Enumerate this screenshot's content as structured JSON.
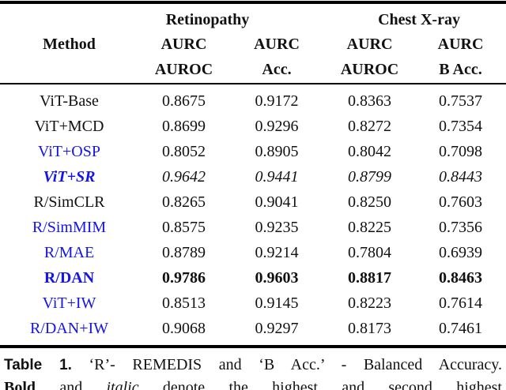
{
  "colors": {
    "accent_blue": "#1414ee",
    "text": "#111111",
    "rule_black": "#000000"
  },
  "table": {
    "group_headers": [
      {
        "label": "Retinopathy"
      },
      {
        "label": "Chest X-ray"
      }
    ],
    "col1_header": "Method",
    "metric_line1": [
      "AURC",
      "AURC",
      "AURC",
      "AURC"
    ],
    "metric_line2": [
      "AUROC",
      "Acc.",
      "AUROC",
      "B Acc."
    ],
    "rows": [
      {
        "method": "ViT-Base",
        "method_color": "black",
        "method_style": "normal",
        "value_style": "normal",
        "values": [
          "0.8675",
          "0.9172",
          "0.8363",
          "0.7537"
        ]
      },
      {
        "method": "ViT+MCD",
        "method_color": "black",
        "method_style": "normal",
        "value_style": "normal",
        "values": [
          "0.8699",
          "0.9296",
          "0.8272",
          "0.7354"
        ]
      },
      {
        "method": "ViT+OSP",
        "method_color": "blue",
        "method_style": "normal",
        "value_style": "normal",
        "values": [
          "0.8052",
          "0.8905",
          "0.8042",
          "0.7098"
        ]
      },
      {
        "method": "ViT+SR",
        "method_color": "blue",
        "method_style": "bold-italic",
        "value_style": "italic",
        "values": [
          "0.9642",
          "0.9441",
          "0.8799",
          "0.8443"
        ]
      },
      {
        "method": "R/SimCLR",
        "method_color": "black",
        "method_style": "normal",
        "value_style": "normal",
        "values": [
          "0.8265",
          "0.9041",
          "0.8250",
          "0.7603"
        ]
      },
      {
        "method": "R/SimMIM",
        "method_color": "blue",
        "method_style": "normal",
        "value_style": "normal",
        "values": [
          "0.8575",
          "0.9235",
          "0.8225",
          "0.7356"
        ]
      },
      {
        "method": "R/MAE",
        "method_color": "blue",
        "method_style": "normal",
        "value_style": "normal",
        "values": [
          "0.8789",
          "0.9214",
          "0.7804",
          "0.6939"
        ]
      },
      {
        "method": "R/DAN",
        "method_color": "blue",
        "method_style": "bold",
        "value_style": "bold",
        "values": [
          "0.9786",
          "0.9603",
          "0.8817",
          "0.8463"
        ]
      },
      {
        "method": "ViT+IW",
        "method_color": "blue",
        "method_style": "normal",
        "value_style": "normal",
        "values": [
          "0.8513",
          "0.9145",
          "0.8223",
          "0.7614"
        ]
      },
      {
        "method": "R/DAN+IW",
        "method_color": "blue",
        "method_style": "normal",
        "value_style": "normal",
        "values": [
          "0.9068",
          "0.9297",
          "0.8173",
          "0.7461"
        ]
      }
    ]
  },
  "caption": {
    "label": "Table 1.",
    "line1_rest": "‘R’- REMEDIS and ‘B Acc.’ - Balanced Accuracy.",
    "line2_bold": "Bold",
    "line2_mid": " and ",
    "line2_italic": "italic",
    "line2_rest": " denote the highest and second highest"
  }
}
